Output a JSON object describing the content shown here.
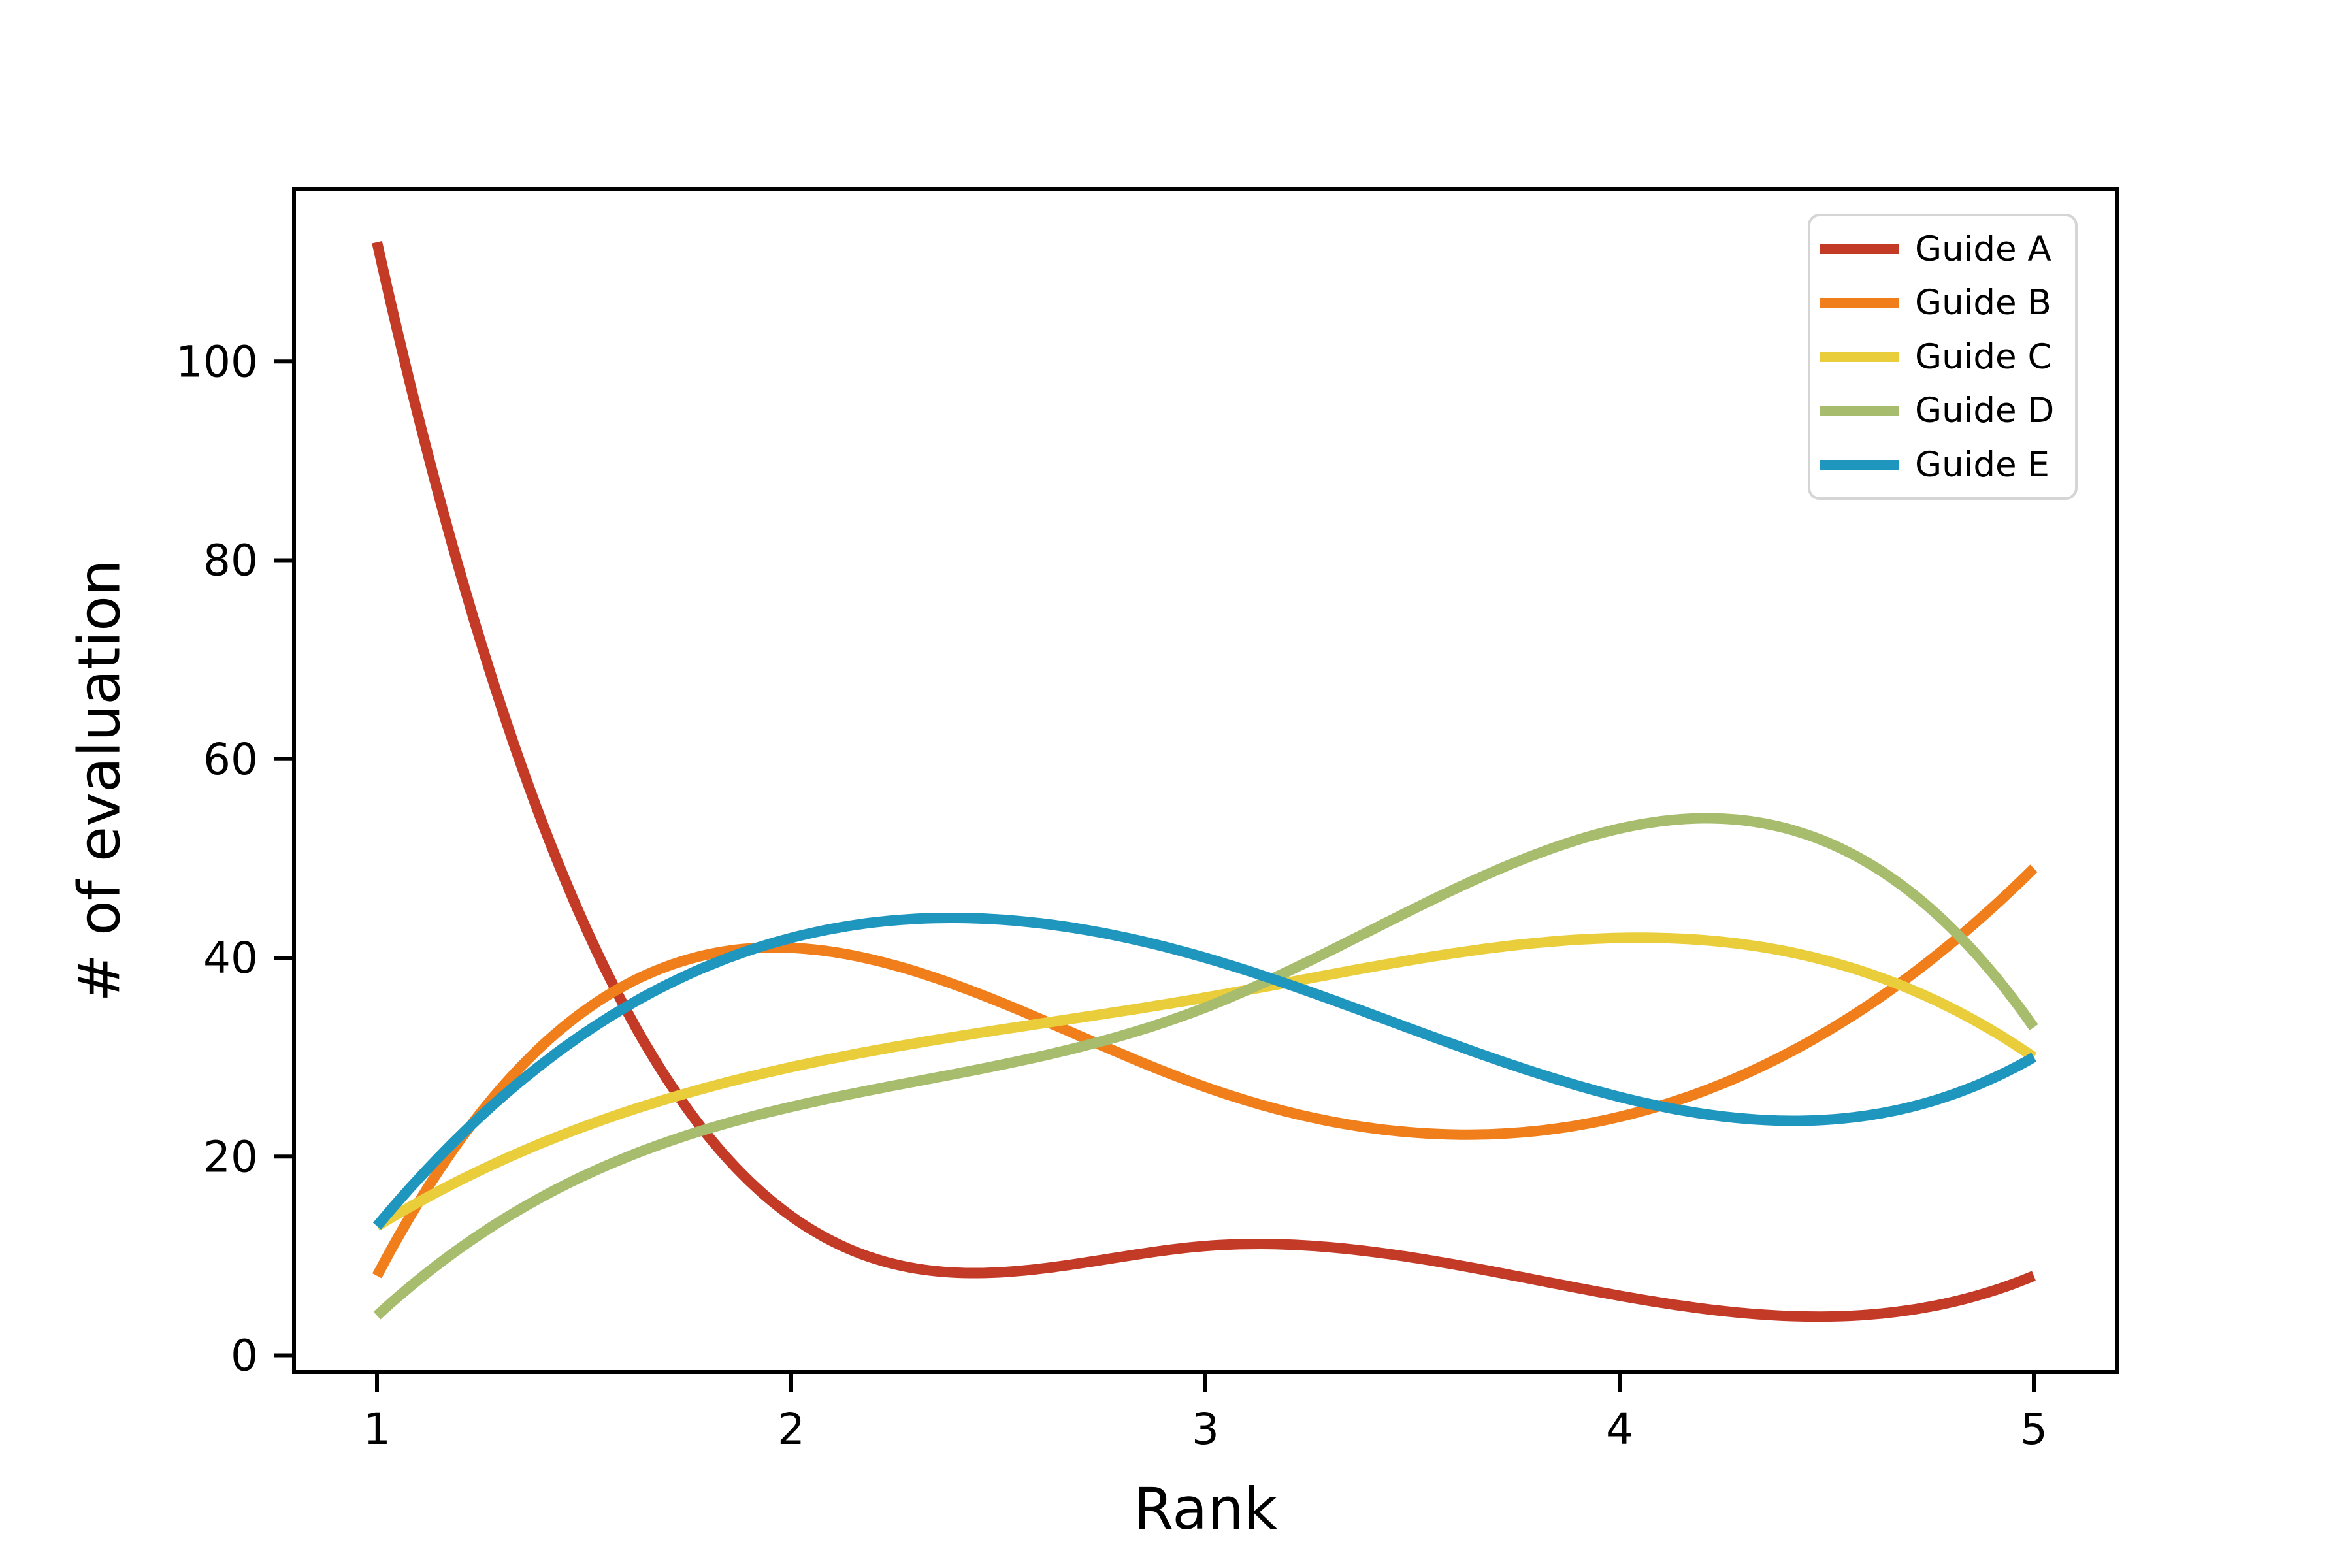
{
  "figure": {
    "background": "#ffffff",
    "frame_color": "#000000",
    "legend_border_color": "#d5d5d5"
  },
  "chart_data": {
    "type": "line",
    "title": "",
    "xlabel": "Rank",
    "ylabel": "# of evaluation",
    "x": [
      1,
      2,
      3,
      4,
      5
    ],
    "xticks": [
      1,
      2,
      3,
      4,
      5
    ],
    "xticklabels": [
      "1",
      "2",
      "3",
      "4",
      "5"
    ],
    "yticks": [
      0,
      20,
      40,
      60,
      80,
      100
    ],
    "yticklabels": [
      "0",
      "20",
      "40",
      "60",
      "80",
      "100"
    ],
    "xlim": [
      0.8,
      5.2
    ],
    "ylim": [
      -1.7,
      117.4
    ],
    "grid": false,
    "legend_position": "upper right",
    "interpolation": "smooth cubic spline (not-a-knot) through the data points",
    "series": [
      {
        "name": "Guide A",
        "color": "#c33a27",
        "values": [
          112,
          14,
          11,
          6,
          8
        ]
      },
      {
        "name": "Guide B",
        "color": "#f07e1b",
        "values": [
          8,
          41,
          27,
          24,
          49
        ]
      },
      {
        "name": "Guide C",
        "color": "#e9cd3a",
        "values": [
          13,
          29,
          36,
          42,
          30
        ]
      },
      {
        "name": "Guide D",
        "color": "#a7bd6d",
        "values": [
          4,
          25,
          35,
          53,
          33
        ]
      },
      {
        "name": "Guide E",
        "color": "#1f96be",
        "values": [
          13,
          42,
          40,
          26,
          30
        ]
      }
    ]
  }
}
